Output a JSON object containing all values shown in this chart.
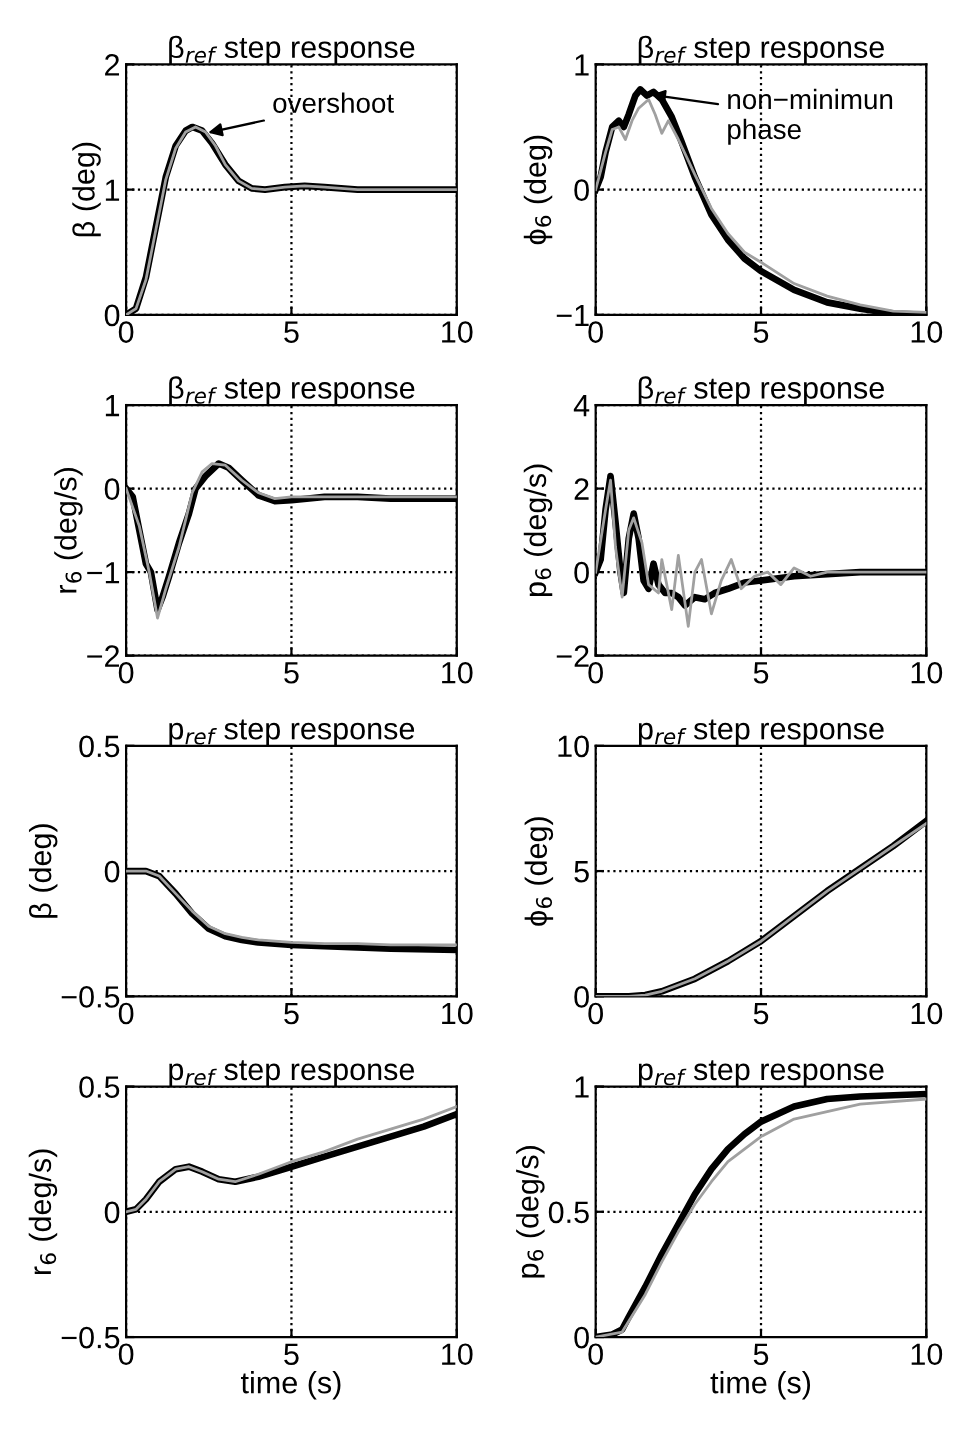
{
  "chart_data": [
    {
      "type": "line",
      "title": "β$_{ref}$ step response",
      "ylabel": "β (deg)",
      "xlim": [
        0,
        10
      ],
      "ylim": [
        0,
        2
      ],
      "xticks": [
        0,
        5,
        10
      ],
      "yticks": [
        0,
        1,
        2
      ],
      "grid": true,
      "annotations": [
        {
          "text": "overshoot",
          "x": 2.4,
          "y": 1.45
        }
      ],
      "series": [
        {
          "color": "#a0a0a0",
          "x": [
            0,
            0.3,
            0.6,
            0.9,
            1.2,
            1.5,
            1.8,
            2.1,
            2.4,
            2.7,
            3.0,
            3.4,
            3.8,
            4.2,
            4.8,
            5.4,
            6,
            7,
            8,
            10
          ],
          "values": [
            0,
            0.05,
            0.28,
            0.68,
            1.08,
            1.33,
            1.46,
            1.5,
            1.46,
            1.35,
            1.2,
            1.07,
            1.01,
            1.0,
            1.02,
            1.03,
            1.02,
            1.0,
            1.0,
            1.0
          ]
        },
        {
          "color": "#000000",
          "x": [
            0,
            0.3,
            0.6,
            0.9,
            1.2,
            1.5,
            1.8,
            2.0,
            2.3,
            2.6,
            3.0,
            3.4,
            3.8,
            4.2,
            4.8,
            5.4,
            6,
            7,
            8,
            10
          ],
          "values": [
            0,
            0.05,
            0.3,
            0.7,
            1.1,
            1.35,
            1.47,
            1.5,
            1.47,
            1.37,
            1.2,
            1.07,
            1.01,
            1.0,
            1.02,
            1.03,
            1.02,
            1.0,
            1.0,
            1.0
          ]
        }
      ]
    },
    {
      "type": "line",
      "title": "β$_{ref}$ step response",
      "ylabel": "ϕ$_{6}$ (deg)",
      "xlim": [
        0,
        10
      ],
      "ylim": [
        -1,
        1
      ],
      "xticks": [
        0,
        5,
        10
      ],
      "yticks": [
        -1,
        0,
        1
      ],
      "grid": true,
      "annotations": [
        {
          "text": "non−minimun\nphase",
          "x": 1.6,
          "y": 0.76
        }
      ],
      "series": [
        {
          "color": "#a0a0a0",
          "x": [
            0,
            0.3,
            0.5,
            0.7,
            0.9,
            1.1,
            1.3,
            1.6,
            1.8,
            2.0,
            2.2,
            2.5,
            3.0,
            3.5,
            4,
            4.5,
            5,
            6,
            7,
            8,
            9,
            10
          ],
          "values": [
            0,
            0.3,
            0.48,
            0.5,
            0.4,
            0.55,
            0.65,
            0.72,
            0.6,
            0.45,
            0.55,
            0.4,
            0.12,
            -0.15,
            -0.35,
            -0.5,
            -0.58,
            -0.75,
            -0.85,
            -0.92,
            -0.97,
            -0.98
          ]
        },
        {
          "color": "#000000",
          "x": [
            0,
            0.15,
            0.3,
            0.5,
            0.7,
            0.85,
            1.0,
            1.2,
            1.35,
            1.55,
            1.75,
            2.0,
            2.3,
            2.6,
            3.0,
            3.5,
            4,
            4.5,
            5,
            6,
            7,
            8,
            9,
            10
          ],
          "values": [
            0,
            0.1,
            0.3,
            0.5,
            0.55,
            0.5,
            0.6,
            0.75,
            0.8,
            0.75,
            0.78,
            0.72,
            0.58,
            0.38,
            0.1,
            -0.2,
            -0.4,
            -0.55,
            -0.65,
            -0.8,
            -0.9,
            -0.95,
            -0.99,
            -1.0
          ]
        }
      ]
    },
    {
      "type": "line",
      "title": "β$_{ref}$ step response",
      "ylabel": "r$_{6}$ (deg/s)",
      "xlim": [
        0,
        10
      ],
      "ylim": [
        -2,
        1
      ],
      "xticks": [
        0,
        5,
        10
      ],
      "yticks": [
        -2,
        -1,
        0,
        1
      ],
      "grid": true,
      "series": [
        {
          "color": "#a0a0a0",
          "x": [
            0,
            0.4,
            0.7,
            0.95,
            1.2,
            1.6,
            2.0,
            2.3,
            2.6,
            3.0,
            3.5,
            4,
            4.5,
            5,
            6,
            8,
            10
          ],
          "values": [
            0,
            -0.45,
            -1.0,
            -1.55,
            -1.2,
            -0.7,
            -0.05,
            0.2,
            0.3,
            0.28,
            0.1,
            -0.05,
            -0.12,
            -0.1,
            -0.1,
            -0.1,
            -0.1
          ]
        },
        {
          "color": "#000000",
          "x": [
            0,
            0.2,
            0.4,
            0.6,
            0.75,
            0.95,
            1.1,
            1.3,
            1.6,
            1.9,
            2.1,
            2.4,
            2.8,
            3.1,
            3.5,
            4,
            4.5,
            5,
            6,
            7,
            8,
            10
          ],
          "values": [
            0,
            -0.1,
            -0.5,
            -0.9,
            -1.0,
            -1.45,
            -1.3,
            -1.05,
            -0.65,
            -0.3,
            0,
            0.15,
            0.3,
            0.25,
            0.1,
            -0.08,
            -0.15,
            -0.14,
            -0.1,
            -0.1,
            -0.12,
            -0.12
          ]
        }
      ]
    },
    {
      "type": "line",
      "title": "β$_{ref}$ step response",
      "ylabel": "p$_{6}$ (deg/s)",
      "xlim": [
        0,
        10
      ],
      "ylim": [
        -2,
        4
      ],
      "xticks": [
        0,
        5,
        10
      ],
      "yticks": [
        -2,
        0,
        2,
        4
      ],
      "grid": true,
      "series": [
        {
          "color": "#a0a0a0",
          "x": [
            0,
            0.3,
            0.45,
            0.6,
            0.8,
            1.0,
            1.15,
            1.4,
            1.6,
            1.9,
            2.0,
            2.3,
            2.5,
            2.8,
            3.0,
            3.2,
            3.5,
            3.8,
            4.1,
            4.4,
            4.8,
            5.2,
            5.6,
            6,
            6.5,
            7,
            8,
            10
          ],
          "values": [
            0,
            1.5,
            2.2,
            0.6,
            -0.6,
            1.0,
            1.3,
            0.7,
            -0.3,
            -0.5,
            0.3,
            -0.9,
            0.4,
            -1.3,
            0,
            0.3,
            -1.0,
            -0.2,
            0.3,
            -0.4,
            -0.1,
            0,
            -0.3,
            0.1,
            -0.1,
            0,
            0,
            0
          ]
        },
        {
          "color": "#000000",
          "x": [
            0,
            0.15,
            0.3,
            0.45,
            0.6,
            0.75,
            0.85,
            1.0,
            1.15,
            1.3,
            1.45,
            1.6,
            1.75,
            1.9,
            2.1,
            2.3,
            2.5,
            2.7,
            3.0,
            3.3,
            3.6,
            4,
            4.5,
            5,
            6,
            7,
            8,
            10
          ],
          "values": [
            0,
            0.3,
            1.5,
            2.3,
            1.2,
            0,
            -0.5,
            0.8,
            1.4,
            0.8,
            -0.2,
            -0.4,
            0.2,
            -0.3,
            -0.5,
            -0.5,
            -0.6,
            -0.8,
            -0.6,
            -0.65,
            -0.5,
            -0.4,
            -0.25,
            -0.2,
            -0.1,
            -0.05,
            0,
            0
          ]
        }
      ]
    },
    {
      "type": "line",
      "title": "p$_{ref}$ step response",
      "ylabel": "β (deg)",
      "xlim": [
        0,
        10
      ],
      "ylim": [
        -0.5,
        0.5
      ],
      "xticks": [
        0,
        5,
        10
      ],
      "yticks": [
        -0.5,
        0,
        0.5
      ],
      "grid": true,
      "series": [
        {
          "color": "#a0a0a0",
          "x": [
            0,
            0.6,
            1,
            1.5,
            2,
            2.5,
            3,
            3.5,
            4,
            5,
            6,
            7,
            8,
            10
          ],
          "values": [
            0,
            0,
            -0.02,
            -0.09,
            -0.16,
            -0.22,
            -0.25,
            -0.265,
            -0.275,
            -0.285,
            -0.29,
            -0.29,
            -0.295,
            -0.295
          ]
        },
        {
          "color": "#000000",
          "x": [
            0,
            0.6,
            1,
            1.5,
            2,
            2.5,
            3,
            3.5,
            4,
            5,
            6,
            7,
            8,
            10
          ],
          "values": [
            0,
            0,
            -0.02,
            -0.09,
            -0.17,
            -0.23,
            -0.26,
            -0.275,
            -0.285,
            -0.295,
            -0.3,
            -0.305,
            -0.31,
            -0.315
          ]
        }
      ]
    },
    {
      "type": "line",
      "title": "p$_{ref}$ step response",
      "ylabel": "ϕ$_{6}$ (deg)",
      "xlim": [
        0,
        10
      ],
      "ylim": [
        0,
        10
      ],
      "xticks": [
        0,
        5,
        10
      ],
      "yticks": [
        0,
        5,
        10
      ],
      "grid": true,
      "series": [
        {
          "color": "#a0a0a0",
          "x": [
            0,
            1,
            1.5,
            2,
            3,
            4,
            5,
            6,
            7,
            8,
            9,
            10
          ],
          "values": [
            0,
            0,
            0.05,
            0.2,
            0.7,
            1.4,
            2.2,
            3.2,
            4.2,
            5.1,
            6.0,
            6.9
          ]
        },
        {
          "color": "#000000",
          "x": [
            0,
            1,
            1.5,
            2,
            3,
            4,
            5,
            6,
            7,
            8,
            9,
            10
          ],
          "values": [
            0,
            0,
            0.05,
            0.2,
            0.7,
            1.4,
            2.2,
            3.2,
            4.2,
            5.1,
            6.0,
            7.0
          ]
        }
      ]
    },
    {
      "type": "line",
      "title": "p$_{ref}$ step response",
      "xlabel": "time (s)",
      "ylabel": "r$_{6}$ (deg/s)",
      "xlim": [
        0,
        10
      ],
      "ylim": [
        -0.5,
        0.5
      ],
      "xticks": [
        0,
        5,
        10
      ],
      "yticks": [
        -0.5,
        0,
        0.5
      ],
      "grid": true,
      "series": [
        {
          "color": "#a0a0a0",
          "x": [
            0,
            0.3,
            0.6,
            1,
            1.5,
            1.9,
            2.3,
            2.8,
            3.3,
            4,
            5,
            6,
            7,
            8,
            9,
            10
          ],
          "values": [
            0,
            0.01,
            0.05,
            0.12,
            0.17,
            0.18,
            0.16,
            0.13,
            0.12,
            0.15,
            0.2,
            0.24,
            0.29,
            0.33,
            0.37,
            0.42
          ]
        },
        {
          "color": "#000000",
          "x": [
            0,
            0.3,
            0.6,
            1,
            1.5,
            1.9,
            2.3,
            2.8,
            3.3,
            4,
            5,
            6,
            7,
            8,
            9,
            10
          ],
          "values": [
            0,
            0.01,
            0.05,
            0.12,
            0.17,
            0.18,
            0.16,
            0.13,
            0.12,
            0.14,
            0.18,
            0.22,
            0.26,
            0.3,
            0.34,
            0.39
          ]
        }
      ]
    },
    {
      "type": "line",
      "title": "p$_{ref}$ step response",
      "xlabel": "time (s)",
      "ylabel": "p$_{6}$ (deg/s)",
      "xlim": [
        0,
        10
      ],
      "ylim": [
        0,
        1
      ],
      "xticks": [
        0,
        5,
        10
      ],
      "yticks": [
        0,
        0.5,
        1
      ],
      "grid": true,
      "series": [
        {
          "color": "#a0a0a0",
          "x": [
            0,
            0.8,
            1.5,
            2,
            2.5,
            3,
            3.5,
            4,
            4.5,
            5,
            6,
            7,
            8,
            10
          ],
          "values": [
            0,
            0.02,
            0.17,
            0.3,
            0.42,
            0.53,
            0.62,
            0.7,
            0.75,
            0.8,
            0.87,
            0.9,
            0.93,
            0.95
          ]
        },
        {
          "color": "#000000",
          "x": [
            0,
            0.5,
            0.8,
            1,
            1.5,
            2,
            2.5,
            3,
            3.5,
            4,
            4.5,
            5,
            6,
            7,
            8,
            10
          ],
          "values": [
            0,
            0.01,
            0.03,
            0.08,
            0.2,
            0.33,
            0.45,
            0.57,
            0.67,
            0.75,
            0.81,
            0.86,
            0.92,
            0.95,
            0.96,
            0.97
          ]
        }
      ]
    }
  ]
}
